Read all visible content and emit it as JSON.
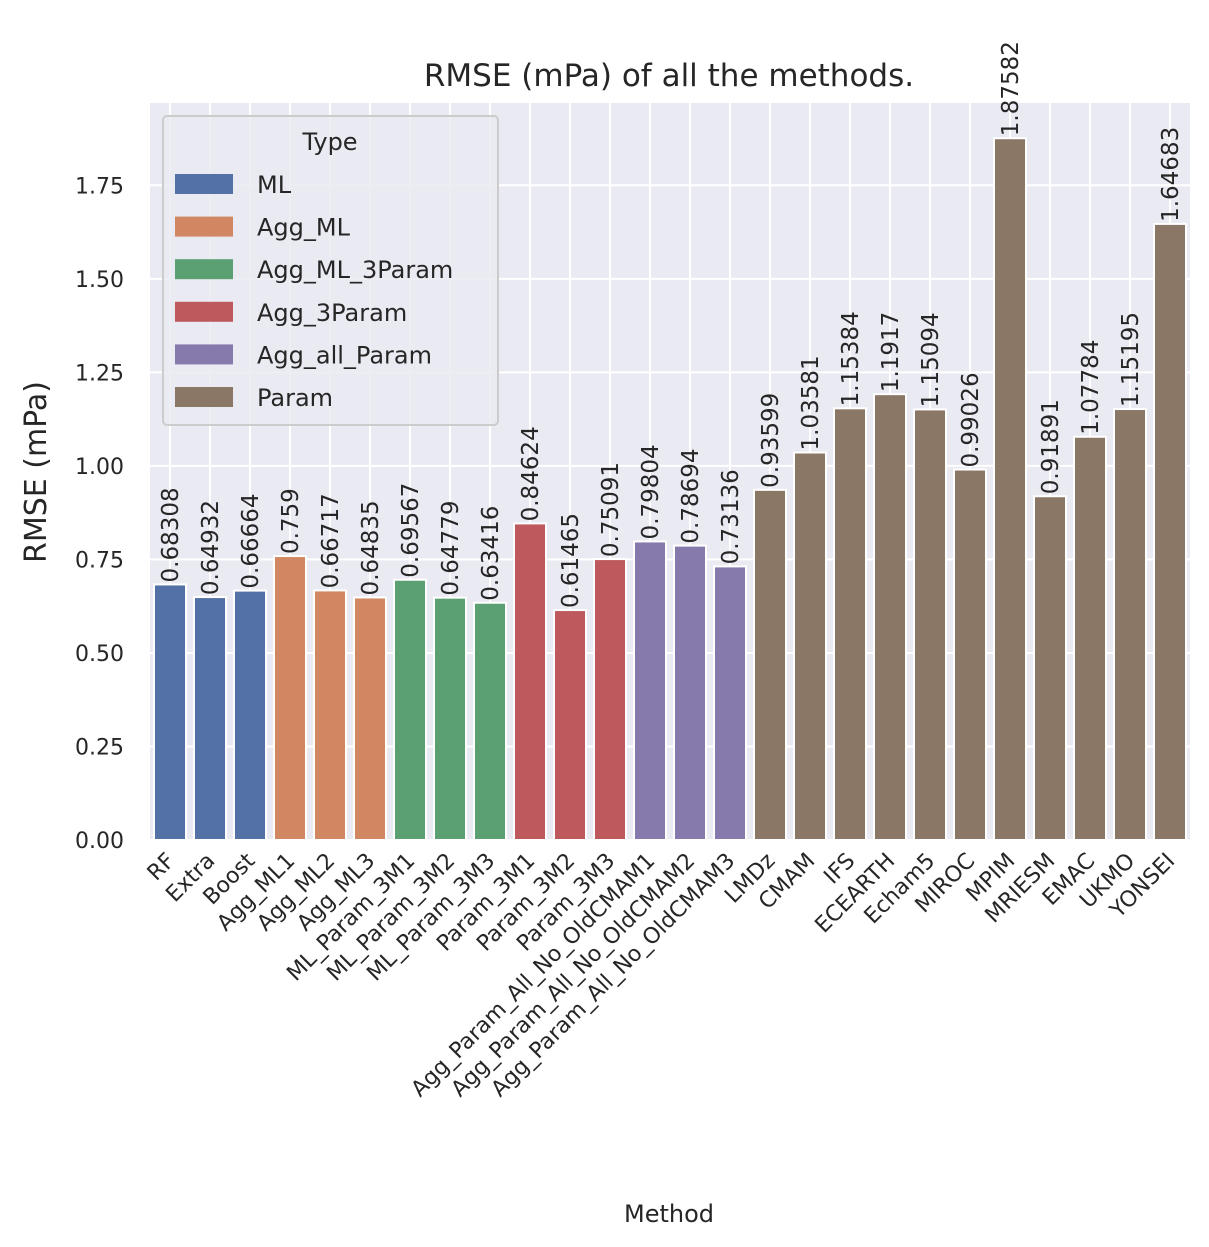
{
  "chart_data": {
    "type": "bar",
    "title": "RMSE (mPa) of all the methods.",
    "xlabel": "Method",
    "ylabel": "RMSE (mPa)",
    "ylim": [
      0,
      1.97
    ],
    "yticks": [
      "0.00",
      "0.25",
      "0.50",
      "0.75",
      "1.00",
      "1.25",
      "1.50",
      "1.75"
    ],
    "grid": true,
    "legend": {
      "title": "Type",
      "placement": "top-left",
      "entries": [
        {
          "name": "ML",
          "color": "#5471a6"
        },
        {
          "name": "Agg_ML",
          "color": "#d18862"
        },
        {
          "name": "Agg_ML_3Param",
          "color": "#5ba072"
        },
        {
          "name": "Agg_3Param",
          "color": "#be5a5e"
        },
        {
          "name": "Agg_all_Param",
          "color": "#8679ab"
        },
        {
          "name": "Param",
          "color": "#8b7766"
        }
      ]
    },
    "categories": [
      "RF",
      "Extra",
      "Boost",
      "Agg_ML1",
      "Agg_ML2",
      "Agg_ML3",
      "ML_Param_3M1",
      "ML_Param_3M2",
      "ML_Param_3M3",
      "Param_3M1",
      "Param_3M2",
      "Param_3M3",
      "Agg_Param_All_No_OldCMAM1",
      "Agg_Param_All_No_OldCMAM2",
      "Agg_Param_All_No_OldCMAM3",
      "LMDz",
      "CMAM",
      "IFS",
      "ECEARTH",
      "Echam5",
      "MIROC",
      "MPIM",
      "MRIESM",
      "EMAC",
      "UKMO",
      "YONSEI"
    ],
    "values": [
      0.68308,
      0.64932,
      0.66664,
      0.759,
      0.66717,
      0.64835,
      0.69567,
      0.64779,
      0.63416,
      0.84624,
      0.61465,
      0.75091,
      0.79804,
      0.78694,
      0.73136,
      0.93599,
      1.03581,
      1.15384,
      1.1917,
      1.15094,
      0.99026,
      1.87582,
      0.91891,
      1.07784,
      1.15195,
      1.64683
    ],
    "value_labels": [
      "0.68308",
      "0.64932",
      "0.66664",
      "0.759",
      "0.66717",
      "0.64835",
      "0.69567",
      "0.64779",
      "0.63416",
      "0.84624",
      "0.61465",
      "0.75091",
      "0.79804",
      "0.78694",
      "0.73136",
      "0.93599",
      "1.03581",
      "1.15384",
      "1.1917",
      "1.15094",
      "0.99026",
      "1.87582",
      "0.91891",
      "1.07784",
      "1.15195",
      "1.64683"
    ],
    "types": [
      "ML",
      "ML",
      "ML",
      "Agg_ML",
      "Agg_ML",
      "Agg_ML",
      "Agg_ML_3Param",
      "Agg_ML_3Param",
      "Agg_ML_3Param",
      "Agg_3Param",
      "Agg_3Param",
      "Agg_3Param",
      "Agg_all_Param",
      "Agg_all_Param",
      "Agg_all_Param",
      "Param",
      "Param",
      "Param",
      "Param",
      "Param",
      "Param",
      "Param",
      "Param",
      "Param",
      "Param",
      "Param"
    ],
    "colors": {
      "background": "#eaeaf2",
      "grid": "#ffffff",
      "text": "#262626"
    }
  }
}
